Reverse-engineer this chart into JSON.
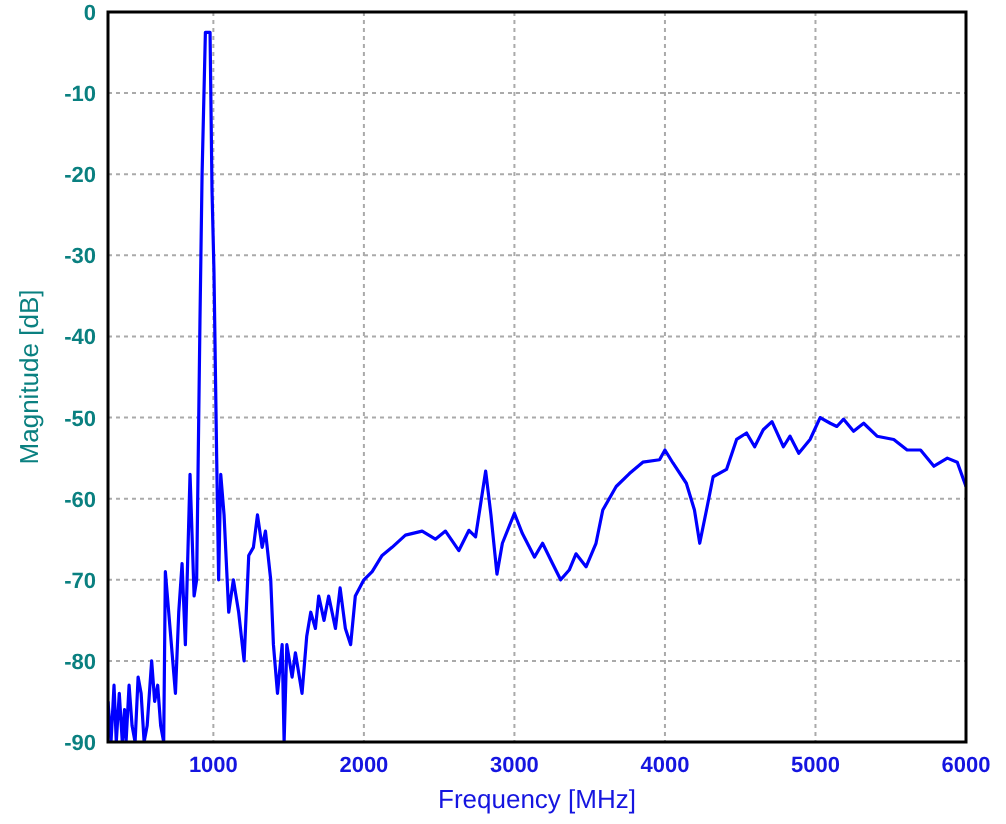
{
  "chart_data": {
    "type": "line",
    "xlabel": "Frequency [MHz]",
    "ylabel": "Magnitude [dB]",
    "xlim": [
      300,
      6000
    ],
    "ylim": [
      -90,
      0
    ],
    "xticks": [
      1000,
      2000,
      3000,
      4000,
      5000,
      6000
    ],
    "yticks": [
      -90,
      -80,
      -70,
      -60,
      -50,
      -40,
      -30,
      -20,
      -10,
      0
    ],
    "grid": true,
    "line_style": "solid",
    "marker": "none",
    "series": [
      {
        "color": "#0000ff",
        "x": [
          300,
          320,
          340,
          355,
          375,
          395,
          410,
          420,
          440,
          460,
          480,
          500,
          520,
          540,
          560,
          590,
          610,
          630,
          650,
          670,
          681,
          748,
          770,
          792,
          814,
          845,
          872,
          889,
          911,
          925,
          947,
          978,
          991,
          1004,
          1022,
          1035,
          1049,
          1071,
          1102,
          1133,
          1168,
          1204,
          1235,
          1266,
          1293,
          1324,
          1346,
          1381,
          1399,
          1426,
          1457,
          1470,
          1488,
          1523,
          1545,
          1589,
          1620,
          1647,
          1678,
          1700,
          1735,
          1766,
          1811,
          1842,
          1877,
          1912,
          1943,
          2000,
          2055,
          2121,
          2187,
          2276,
          2387,
          2475,
          2542,
          2631,
          2698,
          2742,
          2809,
          2844,
          2884,
          2920,
          3000,
          3053,
          3133,
          3187,
          3253,
          3307,
          3364,
          3409,
          3476,
          3542,
          3587,
          3676,
          3764,
          3853,
          3964,
          4000,
          4053,
          4142,
          4196,
          4231,
          4276,
          4320,
          4409,
          4476,
          4542,
          4596,
          4653,
          4711,
          4787,
          4831,
          4889,
          4964,
          5031,
          5098,
          5142,
          5187,
          5253,
          5320,
          5409,
          5520,
          5609,
          5698,
          5787,
          5876,
          5942,
          6000
        ],
        "values": [
          -85,
          -90,
          -83,
          -90,
          -84,
          -90,
          -86,
          -90,
          -83,
          -88,
          -90,
          -82,
          -84,
          -90,
          -88,
          -80,
          -85,
          -83,
          -88,
          -90,
          -69,
          -84,
          -74,
          -68,
          -78,
          -57,
          -72,
          -70,
          -38,
          -20,
          -2.5,
          -2.5,
          -22,
          -32,
          -55,
          -70,
          -57,
          -62,
          -74,
          -70,
          -74,
          -80,
          -67,
          -66,
          -62,
          -66,
          -64,
          -70,
          -78,
          -84,
          -78,
          -90,
          -78,
          -82,
          -79,
          -84,
          -77,
          -74,
          -76,
          -72,
          -75,
          -72,
          -76,
          -71,
          -76,
          -78,
          -72,
          -70,
          -69,
          -67,
          -66,
          -64.5,
          -64,
          -65,
          -64,
          -66.4,
          -63.9,
          -64.7,
          -56.6,
          -62,
          -69.3,
          -65.5,
          -61.8,
          -64.3,
          -67.2,
          -65.5,
          -68,
          -70,
          -68.8,
          -66.8,
          -68.4,
          -65.5,
          -61.4,
          -58.5,
          -56.9,
          -55.5,
          -55.2,
          -54,
          -55.6,
          -58.1,
          -61.4,
          -65.5,
          -61.4,
          -57.3,
          -56.4,
          -52.7,
          -51.9,
          -53.6,
          -51.5,
          -50.5,
          -53.6,
          -52.3,
          -54.4,
          -52.7,
          -50,
          -50.7,
          -51.1,
          -50.2,
          -51.7,
          -50.7,
          -52.3,
          -52.7,
          -54,
          -54,
          -56,
          -55,
          -55.5,
          -58.5
        ]
      }
    ]
  }
}
